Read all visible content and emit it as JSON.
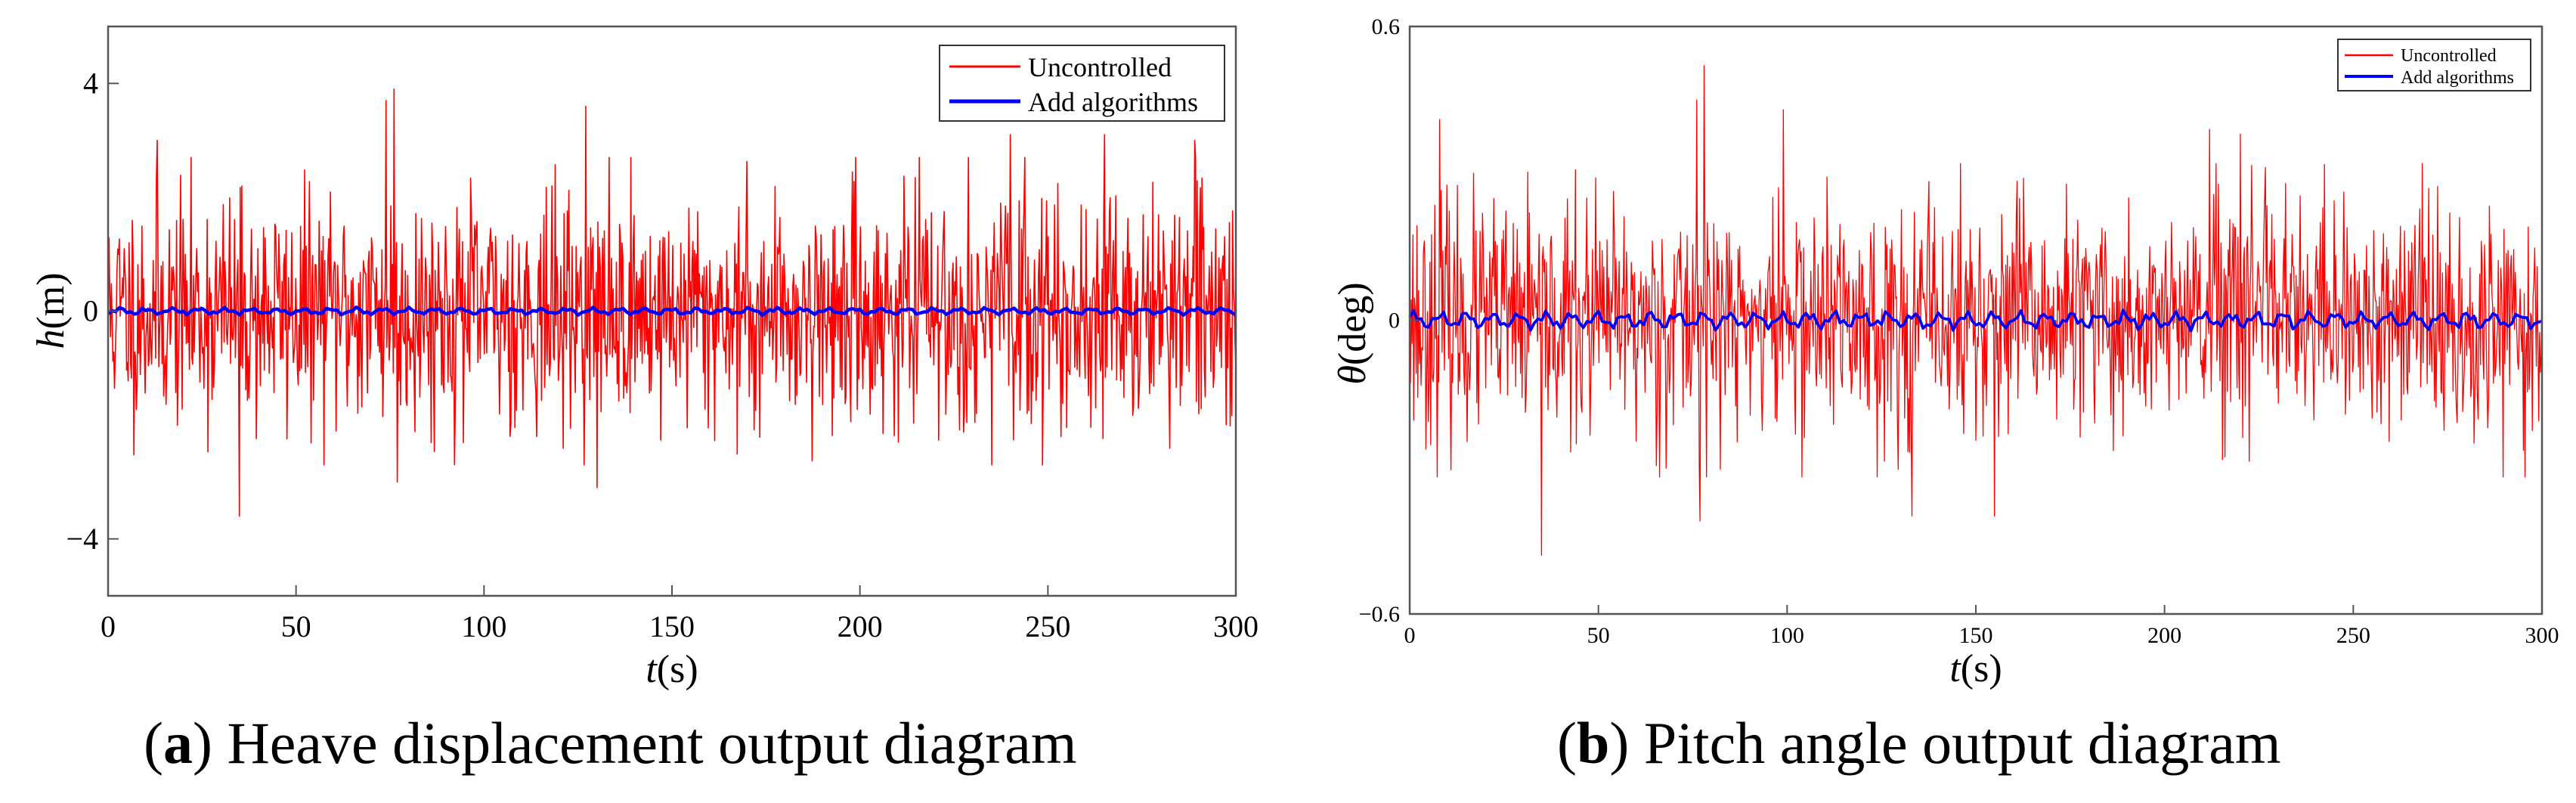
{
  "chart_data": [
    {
      "type": "line",
      "panel_label": "a",
      "caption": "Heave displacement output diagram",
      "xlabel": "t",
      "xunit": "(s)",
      "ylabel": "h",
      "yunit": "(m)",
      "xlim": [
        0,
        300
      ],
      "ylim": [
        -5,
        5
      ],
      "xticks": [
        0,
        50,
        100,
        150,
        200,
        250,
        300
      ],
      "yticks": [
        -4,
        0,
        4
      ],
      "ytick_labels": [
        "−4",
        "0",
        "4"
      ],
      "grid": false,
      "legend_position": "top-right",
      "series": [
        {
          "name": "Uncontrolled",
          "color": "#ff0000",
          "description": "noise oscillating about 0 within about ±2.5 m, peaks to 3.9 and -3.6",
          "amplitude": 1.0,
          "clip": 2.7,
          "n_points": 1400,
          "seed": 11,
          "peaks": [
            {
              "x": 76,
              "y": 3.9
            },
            {
              "x": 74,
              "y": 3.7
            },
            {
              "x": 35,
              "y": -3.6
            },
            {
              "x": 13,
              "y": 3.0
            },
            {
              "x": 77,
              "y": -3.0
            },
            {
              "x": 127,
              "y": 3.6
            },
            {
              "x": 289,
              "y": 3.0
            },
            {
              "x": 265,
              "y": 3.1
            },
            {
              "x": 130,
              "y": -3.1
            },
            {
              "x": 240,
              "y": 3.1
            }
          ]
        },
        {
          "name": "Add algorithms",
          "color": "#0000ff",
          "description": "nearly flat near 0",
          "amplitude": 0.04,
          "n_points": 300,
          "seed": 5
        }
      ]
    },
    {
      "type": "line",
      "panel_label": "b",
      "caption": "Pitch angle output diagram",
      "xlabel": "t",
      "xunit": "(s)",
      "ylabel": "θ",
      "yunit": "(deg)",
      "xlim": [
        0,
        300
      ],
      "ylim": [
        -0.6,
        0.6
      ],
      "xticks": [
        0,
        50,
        100,
        150,
        200,
        250,
        300
      ],
      "yticks": [
        -0.6,
        0,
        0.6
      ],
      "ytick_labels": [
        "−0.6",
        "0",
        "0.6"
      ],
      "grid": false,
      "legend_position": "top-right",
      "series": [
        {
          "name": "Uncontrolled",
          "color": "#ff0000",
          "description": "noise oscillating about 0 within about ±0.3 deg, peaks to 0.52 and -0.48",
          "amplitude": 0.12,
          "clip": 0.32,
          "n_points": 1400,
          "seed": 23,
          "peaks": [
            {
              "x": 78,
              "y": 0.52
            },
            {
              "x": 76,
              "y": 0.45
            },
            {
              "x": 35,
              "y": -0.48
            },
            {
              "x": 99,
              "y": 0.43
            },
            {
              "x": 8,
              "y": 0.41
            },
            {
              "x": 133,
              "y": -0.4
            },
            {
              "x": 77,
              "y": -0.41
            },
            {
              "x": 212,
              "y": 0.39
            },
            {
              "x": 155,
              "y": -0.4
            },
            {
              "x": 220,
              "y": 0.38
            }
          ]
        },
        {
          "name": "Add algorithms",
          "color": "#0000ff",
          "description": "small wiggle near 0 within about ±0.02 deg",
          "amplitude": 0.012,
          "n_points": 300,
          "seed": 7
        }
      ]
    }
  ]
}
